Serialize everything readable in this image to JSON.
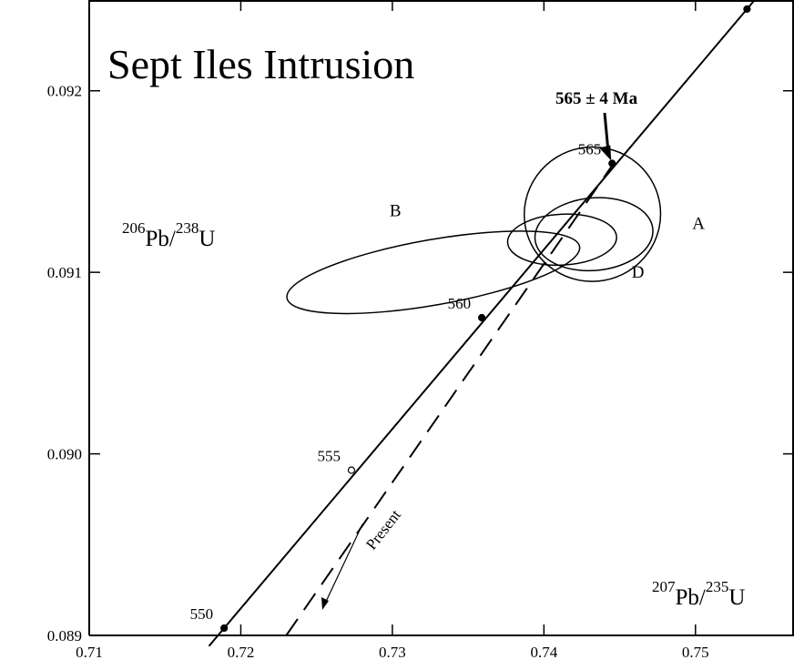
{
  "chart_data": {
    "type": "scatter",
    "title": "Sept Iles Intrusion",
    "xlabel": {
      "pre": "207",
      "mid": "Pb/",
      "sup2": "235",
      "post": "U"
    },
    "ylabel": {
      "pre": "206",
      "mid": "Pb/",
      "sup2": "238",
      "post": "U"
    },
    "xlim": [
      0.71,
      0.7565
    ],
    "ylim": [
      0.089,
      0.0925
    ],
    "x_ticks": [
      0.71,
      0.72,
      0.73,
      0.74,
      0.75
    ],
    "x_tick_labels": [
      "0.71",
      "0.72",
      "0.73",
      "0.74",
      "0.75"
    ],
    "y_ticks": [
      0.089,
      0.09,
      0.091,
      0.092
    ],
    "y_tick_labels": [
      "0.089",
      "0.090",
      "0.091",
      "0.092"
    ],
    "concordia": {
      "points": [
        {
          "x": 0.7189,
          "y": 0.08904,
          "label": "550",
          "filled": true
        },
        {
          "x": 0.7273,
          "y": 0.08991,
          "label": "555",
          "filled": false
        },
        {
          "x": 0.7359,
          "y": 0.09075,
          "label": "560",
          "filled": true
        },
        {
          "x": 0.7445,
          "y": 0.0916,
          "label": "565",
          "filled": true
        },
        {
          "x": 0.7534,
          "y": 0.09245,
          "label": "",
          "filled": true
        }
      ]
    },
    "ellipses": [
      {
        "label": "B",
        "cx": 0.7327,
        "cy": 0.091,
        "rx": 0.0098,
        "ry": 0.00018,
        "angle_deg": -10
      },
      {
        "label": "A",
        "cx": 0.7432,
        "cy": 0.09132,
        "rx": 0.0045,
        "ry": 0.00037,
        "angle_deg": -10
      },
      {
        "label": "",
        "cx": 0.7433,
        "cy": 0.09121,
        "rx": 0.0039,
        "ry": 0.0002,
        "angle_deg": -5
      },
      {
        "label": "D",
        "cx": 0.7412,
        "cy": 0.09118,
        "rx": 0.0036,
        "ry": 0.00014,
        "angle_deg": -3
      }
    ],
    "ellipse_labels": [
      {
        "text": "B",
        "x": 0.7302,
        "y": 0.09131
      },
      {
        "text": "A",
        "x": 0.7502,
        "y": 0.09124
      },
      {
        "text": "D",
        "x": 0.7462,
        "y": 0.09097
      }
    ],
    "discordia": {
      "x1": 0.723,
      "y1": 0.089,
      "x2": 0.7446,
      "y2": 0.0916
    },
    "annotations": {
      "age": "565 ± 4 Ma",
      "present": "Present"
    }
  }
}
